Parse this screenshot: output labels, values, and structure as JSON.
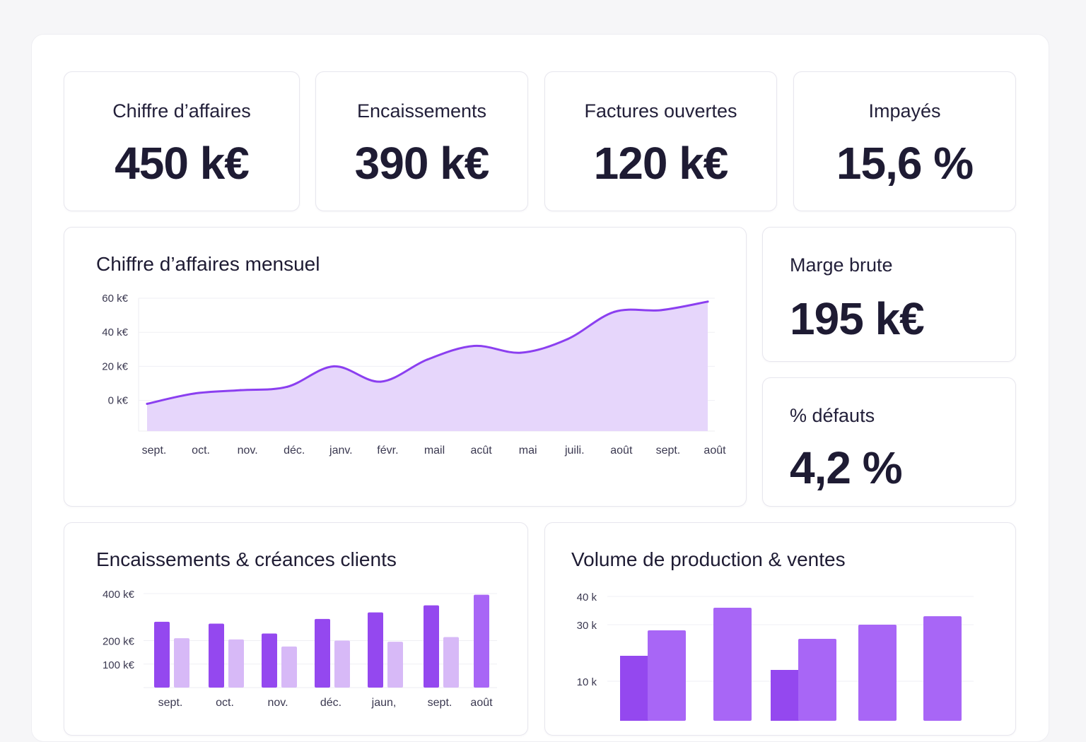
{
  "kpis": {
    "revenue": {
      "label": "Chiffre d’affaires",
      "value": "450 k€"
    },
    "collections": {
      "label": "Encaissements",
      "value": "390 k€"
    },
    "open_invoices": {
      "label": "Factures ouvertes",
      "value": "120 k€"
    },
    "unpaid": {
      "label": "Impayés",
      "value": "15,6 %"
    },
    "gross_margin": {
      "label": "Marge brute",
      "value": "195 k€"
    },
    "defects": {
      "label": "% défauts",
      "value": "4,2 %"
    }
  },
  "colors": {
    "accent": "#8b3ff0",
    "area_fill": "#e6d6fb",
    "bar_dark": "#9448ef",
    "bar_light": "#d7b9f7",
    "bar_mid": "#a866f6"
  },
  "chart_data": [
    {
      "type": "area",
      "title": "Chiffre d’affaires mensuel",
      "categories": [
        "sept.",
        "oct.",
        "nov.",
        "déc.",
        "janv.",
        "févr.",
        "mail",
        "acût",
        "mai",
        "juili.",
        "août",
        "sept.",
        "août"
      ],
      "values": [
        -2,
        4,
        6,
        8,
        20,
        11,
        24,
        32,
        28,
        36,
        52,
        53,
        58
      ],
      "y_ticks": [
        {
          "v": 0,
          "label": "0 k€"
        },
        {
          "v": 20,
          "label": "20 k€"
        },
        {
          "v": 40,
          "label": "40 k€"
        },
        {
          "v": 60,
          "label": "60 k€"
        }
      ],
      "ylim": [
        -18,
        60
      ]
    },
    {
      "type": "bar",
      "title": "Encaissements & créances clients",
      "categories": [
        "sept.",
        "oct.",
        "nov.",
        "déc.",
        "jaun,",
        "sept.",
        "août"
      ],
      "series": [
        {
          "name": "Encaissements",
          "values": [
            280,
            272,
            230,
            292,
            320,
            350,
            395
          ]
        },
        {
          "name": "Créances clients",
          "values": [
            210,
            205,
            175,
            200,
            195,
            215,
            null
          ]
        }
      ],
      "y_ticks": [
        {
          "v": 100,
          "label": "100 k€"
        },
        {
          "v": 200,
          "label": "200 k€"
        },
        {
          "v": 400,
          "label": "400 k€"
        }
      ],
      "ylim": [
        0,
        400
      ]
    },
    {
      "type": "bar",
      "title": "Volume de production & ventes",
      "groups": [
        {
          "values": [
            19,
            28
          ]
        },
        {
          "values": [
            36
          ]
        },
        {
          "values": [
            14,
            25
          ]
        },
        {
          "values": [
            30
          ]
        },
        {
          "values": [
            33
          ]
        }
      ],
      "y_ticks": [
        {
          "v": 10,
          "label": "10 k"
        },
        {
          "v": 30,
          "label": "30 k"
        },
        {
          "v": 40,
          "label": "40 k"
        }
      ],
      "ylim": [
        -4,
        41
      ]
    }
  ]
}
